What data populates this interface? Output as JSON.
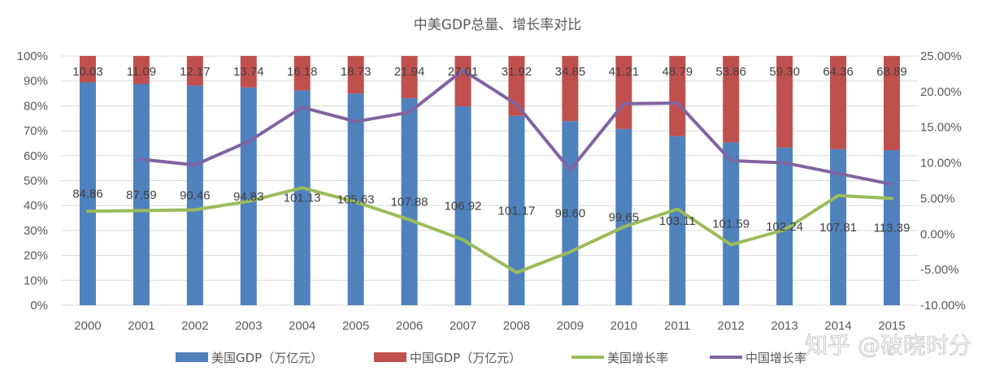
{
  "chart_data": {
    "type": "bar",
    "stacked": "percent",
    "title": "中美GDP总量、增长率对比",
    "categories": [
      "2000",
      "2001",
      "2002",
      "2003",
      "2004",
      "2005",
      "2006",
      "2007",
      "2008",
      "2009",
      "2010",
      "2011",
      "2012",
      "2013",
      "2014",
      "2015"
    ],
    "series": [
      {
        "name": "美国GDP（万亿元）",
        "type": "bar",
        "color": "#4F81BD",
        "values": [
          84.86,
          87.59,
          90.46,
          94.83,
          101.13,
          105.63,
          107.88,
          106.92,
          101.17,
          98.6,
          99.65,
          103.11,
          101.59,
          102.24,
          107.81,
          113.39
        ],
        "labels": [
          "84.86",
          "87.59",
          "90.46",
          "94.83",
          "101.13",
          "105.63",
          "107.88",
          "106.92",
          "101.17",
          "98.60",
          "99.65",
          "103.11",
          "101.59",
          "102.24",
          "107.81",
          "113.39"
        ]
      },
      {
        "name": "中国GDP（万亿元）",
        "type": "bar",
        "color": "#C0504D",
        "values": [
          10.03,
          11.09,
          12.17,
          13.74,
          16.18,
          18.73,
          21.94,
          27.01,
          31.92,
          34.85,
          41.21,
          48.79,
          53.86,
          59.3,
          64.36,
          68.89
        ],
        "labels": [
          "10.03",
          "11.09",
          "12.17",
          "13.74",
          "16.18",
          "18.73",
          "21.94",
          "27.01",
          "31.92",
          "34.85",
          "41.21",
          "48.79",
          "53.86",
          "59.30",
          "64.36",
          "68.89"
        ]
      },
      {
        "name": "美国增长率",
        "type": "line",
        "axis": "right",
        "color": "#9BBB59",
        "values": [
          3.2,
          null,
          3.4,
          4.6,
          6.5,
          4.5,
          2.0,
          -0.8,
          -5.4,
          -2.5,
          1.0,
          3.5,
          -1.5,
          0.6,
          5.4,
          5.0
        ]
      },
      {
        "name": "中国增长率",
        "type": "line",
        "axis": "right",
        "color": "#8064A2",
        "values": [
          null,
          10.5,
          9.7,
          13.0,
          17.8,
          15.8,
          17.1,
          23.0,
          18.2,
          9.0,
          18.3,
          18.4,
          10.3,
          10.0,
          8.5,
          7.0
        ]
      }
    ],
    "y_left": {
      "min": 0,
      "max": 100,
      "ticks": [
        "0%",
        "10%",
        "20%",
        "30%",
        "40%",
        "50%",
        "60%",
        "70%",
        "80%",
        "90%",
        "100%"
      ]
    },
    "y_right": {
      "min": -10,
      "max": 25,
      "ticks": [
        "-10.00%",
        "-5.00%",
        "0.00%",
        "5.00%",
        "10.00%",
        "15.00%",
        "20.00%",
        "25.00%"
      ]
    },
    "grid": true,
    "legend_position": "bottom"
  },
  "watermark": "知乎 @破晓时分"
}
